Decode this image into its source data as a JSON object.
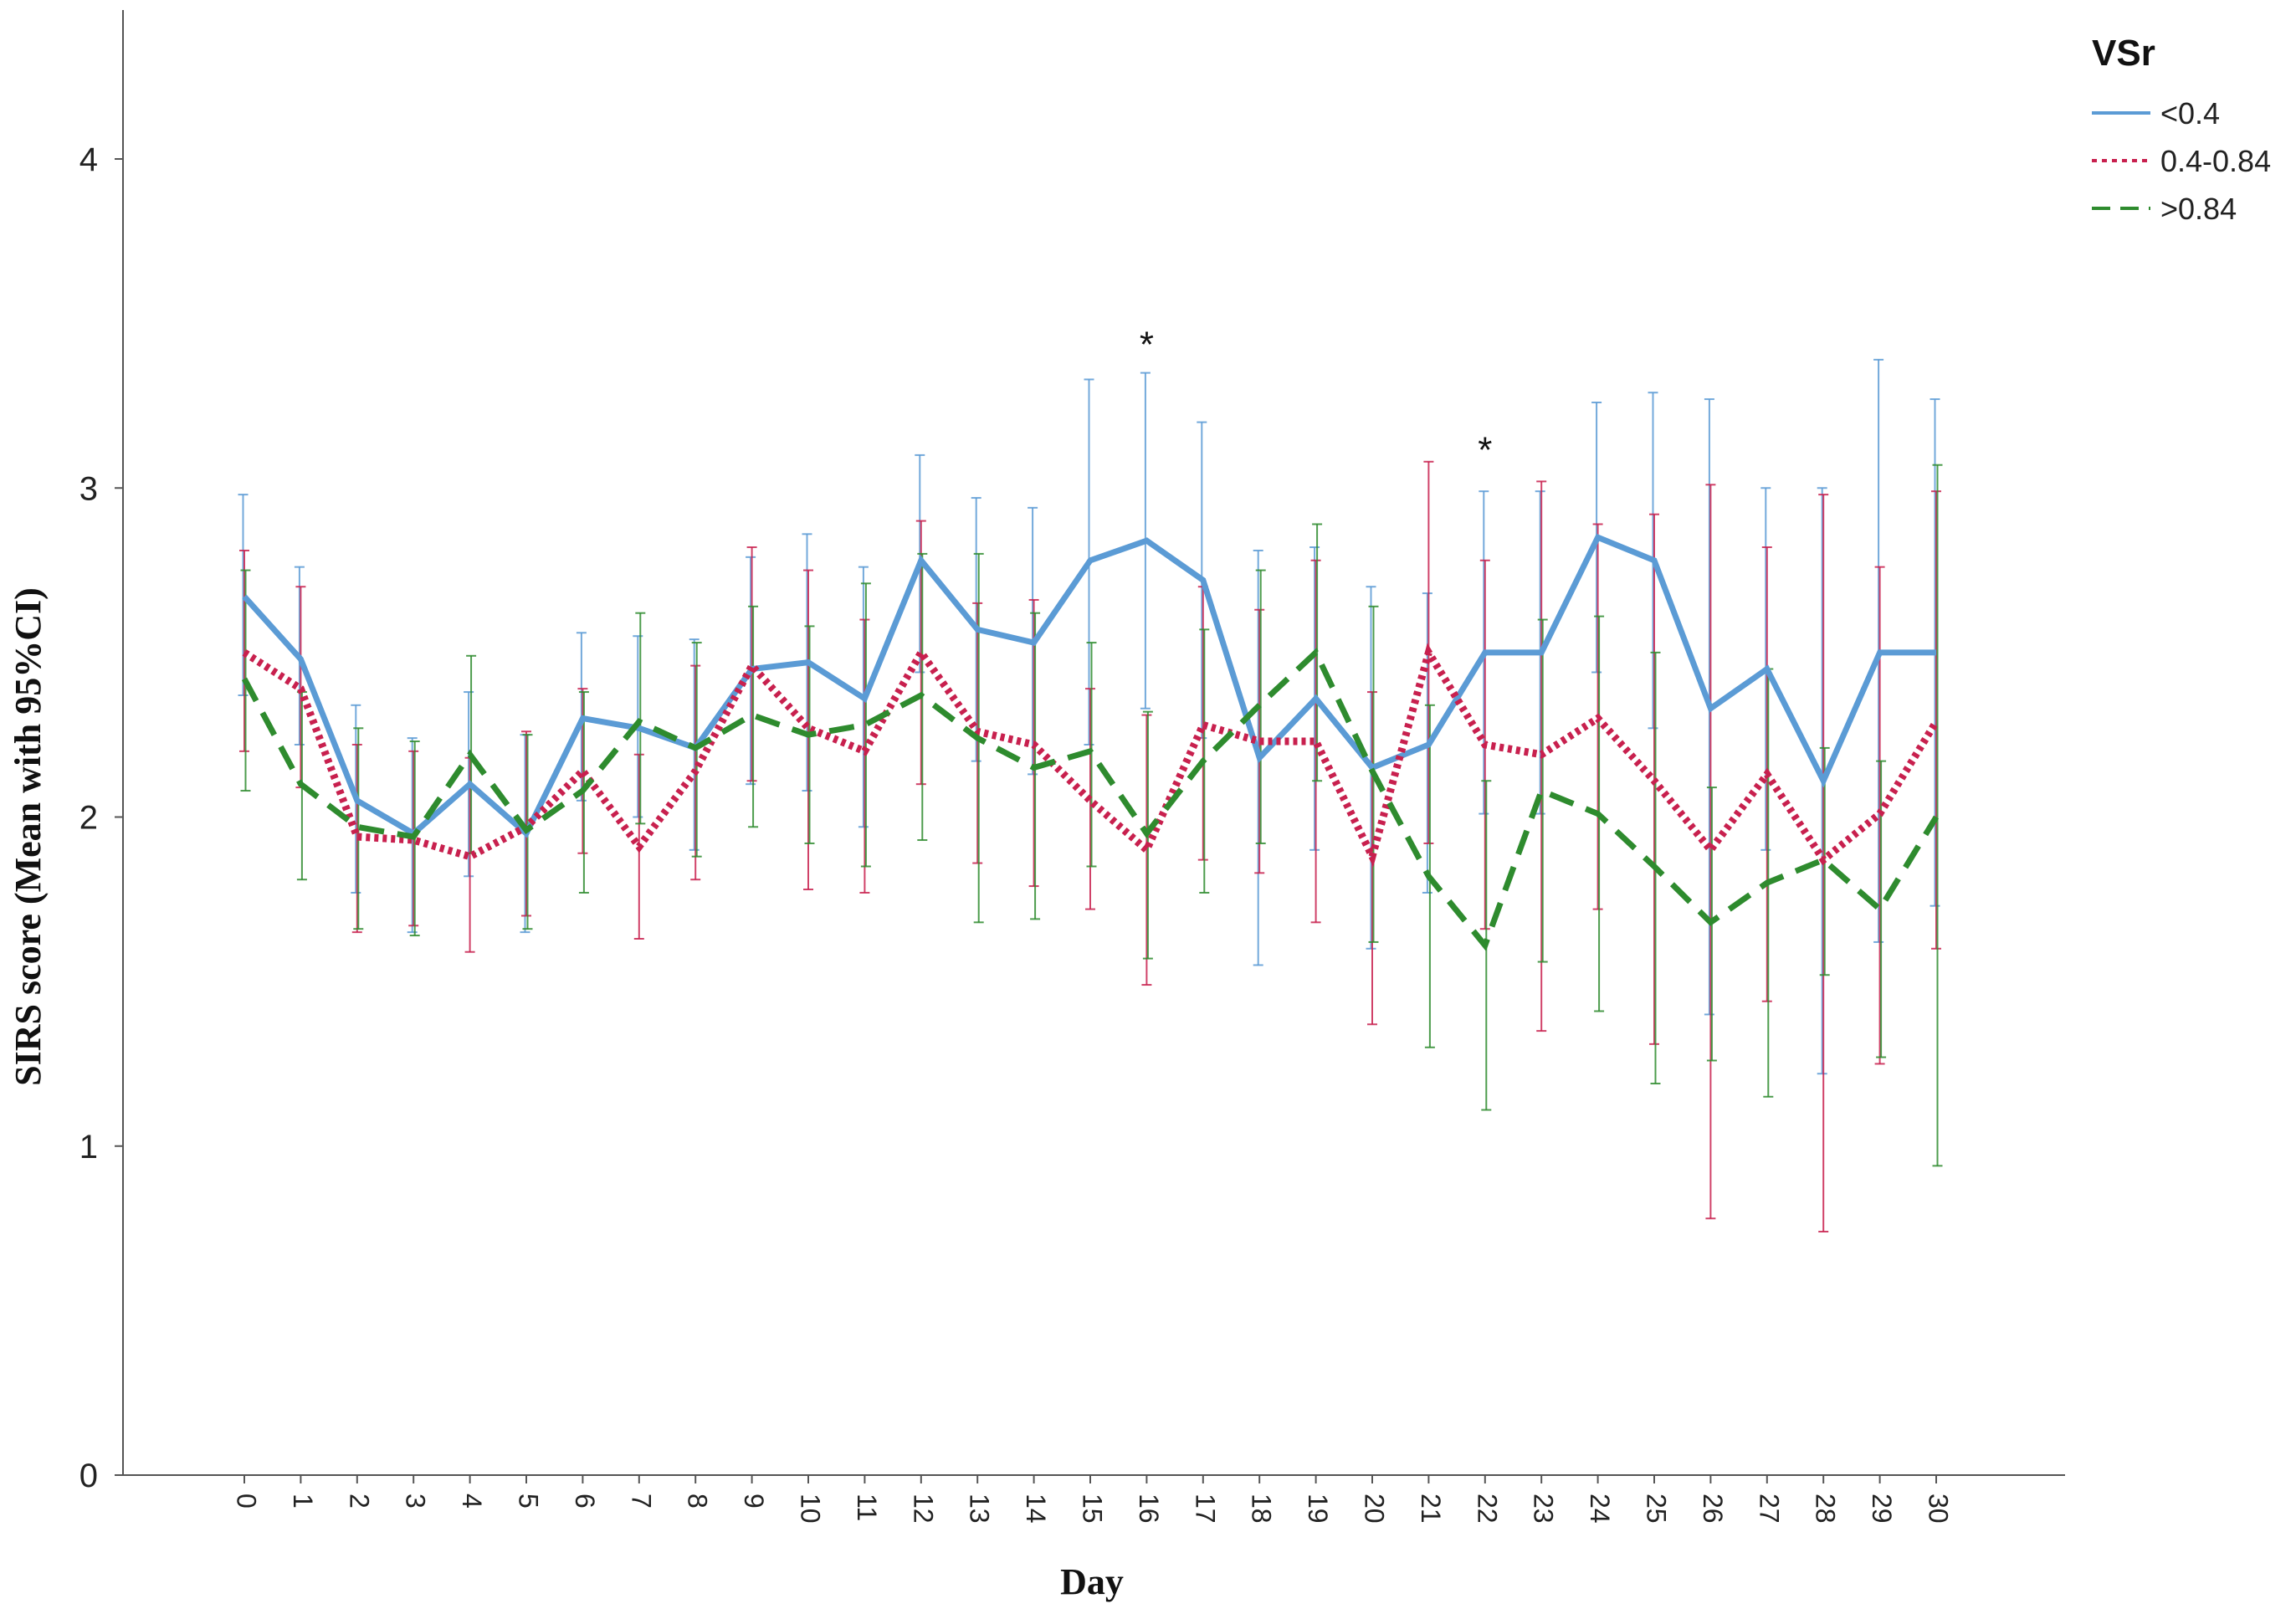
{
  "chart_data": {
    "type": "line",
    "xlabel": "Day",
    "ylabel": "SIRS score (Mean with 95%CI)",
    "ylim": [
      0,
      4.4
    ],
    "yticks": [
      0,
      1,
      2,
      3,
      4
    ],
    "x": [
      0,
      1,
      2,
      3,
      4,
      5,
      6,
      7,
      8,
      9,
      10,
      11,
      12,
      13,
      14,
      15,
      16,
      17,
      18,
      19,
      20,
      21,
      22,
      23,
      24,
      25,
      26,
      27,
      28,
      29,
      30
    ],
    "legend_title": "VSr",
    "legend_placement": "top-right",
    "grid": false,
    "annotations": [
      {
        "x": 16,
        "y": 3.47,
        "text": "*"
      },
      {
        "x": 22,
        "y": 3.15,
        "text": "*"
      }
    ],
    "series": [
      {
        "name": "<0.4",
        "color": "#5b9bd5",
        "dash": "solid",
        "values": [
          2.67,
          2.48,
          2.05,
          1.95,
          2.1,
          1.95,
          2.3,
          2.27,
          2.21,
          2.45,
          2.47,
          2.36,
          2.78,
          2.57,
          2.53,
          2.78,
          2.84,
          2.72,
          2.18,
          2.36,
          2.15,
          2.22,
          2.5,
          2.5,
          2.85,
          2.78,
          2.33,
          2.45,
          2.11,
          2.5,
          2.5
        ],
        "lower": [
          2.37,
          2.22,
          1.77,
          1.65,
          1.82,
          1.65,
          2.05,
          2.0,
          1.9,
          2.1,
          2.08,
          1.97,
          2.44,
          2.17,
          2.13,
          2.22,
          2.33,
          2.24,
          1.55,
          1.9,
          1.6,
          1.77,
          2.01,
          2.01,
          2.44,
          2.27,
          1.4,
          1.9,
          1.22,
          1.62,
          1.73
        ],
        "upper": [
          2.98,
          2.76,
          2.34,
          2.24,
          2.38,
          2.25,
          2.56,
          2.55,
          2.54,
          2.79,
          2.86,
          2.76,
          3.1,
          2.97,
          2.94,
          3.33,
          3.35,
          3.2,
          2.81,
          2.82,
          2.7,
          2.68,
          2.99,
          2.99,
          3.26,
          3.29,
          3.27,
          3.0,
          3.0,
          3.39,
          3.27
        ]
      },
      {
        "name": "0.4-0.84",
        "color": "#c8204e",
        "dash": "dotted",
        "values": [
          2.5,
          2.39,
          1.94,
          1.93,
          1.88,
          1.97,
          2.14,
          1.91,
          2.14,
          2.46,
          2.27,
          2.2,
          2.5,
          2.26,
          2.22,
          2.05,
          1.9,
          2.28,
          2.23,
          2.23,
          1.88,
          2.5,
          2.22,
          2.19,
          2.3,
          2.11,
          1.9,
          2.13,
          1.87,
          2.01,
          2.29
        ],
        "lower": [
          2.2,
          2.09,
          1.65,
          1.67,
          1.59,
          1.7,
          1.89,
          1.63,
          1.81,
          2.11,
          1.78,
          1.77,
          2.1,
          1.86,
          1.79,
          1.72,
          1.49,
          1.87,
          1.83,
          1.68,
          1.37,
          1.92,
          1.66,
          1.35,
          1.72,
          1.31,
          0.78,
          1.44,
          0.74,
          1.25,
          1.6
        ],
        "upper": [
          2.81,
          2.7,
          2.22,
          2.2,
          2.18,
          2.26,
          2.39,
          2.19,
          2.46,
          2.82,
          2.75,
          2.6,
          2.9,
          2.65,
          2.66,
          2.39,
          2.31,
          2.7,
          2.63,
          2.78,
          2.38,
          3.08,
          2.78,
          3.02,
          2.89,
          2.92,
          3.01,
          2.82,
          2.98,
          2.76,
          2.99
        ]
      },
      {
        "name": ">0.84",
        "color": "#2e8b2e",
        "dash": "dashed",
        "values": [
          2.42,
          2.1,
          1.97,
          1.94,
          2.19,
          1.96,
          2.08,
          2.29,
          2.21,
          2.31,
          2.25,
          2.28,
          2.37,
          2.24,
          2.15,
          2.2,
          1.95,
          2.17,
          2.34,
          2.5,
          2.14,
          1.82,
          1.61,
          2.08,
          2.01,
          1.85,
          1.68,
          1.8,
          1.87,
          1.72,
          2.0
        ],
        "lower": [
          2.08,
          1.81,
          1.66,
          1.64,
          1.89,
          1.66,
          1.77,
          1.98,
          1.88,
          1.97,
          1.92,
          1.85,
          1.93,
          1.68,
          1.69,
          1.85,
          1.57,
          1.77,
          1.92,
          2.11,
          1.62,
          1.3,
          1.11,
          1.56,
          1.41,
          1.19,
          1.26,
          1.15,
          1.52,
          1.27,
          0.94
        ],
        "upper": [
          2.75,
          2.38,
          2.27,
          2.23,
          2.49,
          2.25,
          2.38,
          2.62,
          2.53,
          2.64,
          2.58,
          2.71,
          2.8,
          2.8,
          2.62,
          2.53,
          2.32,
          2.57,
          2.75,
          2.89,
          2.64,
          2.34,
          2.11,
          2.6,
          2.61,
          2.5,
          2.09,
          2.45,
          2.21,
          2.17,
          3.07
        ]
      }
    ]
  }
}
